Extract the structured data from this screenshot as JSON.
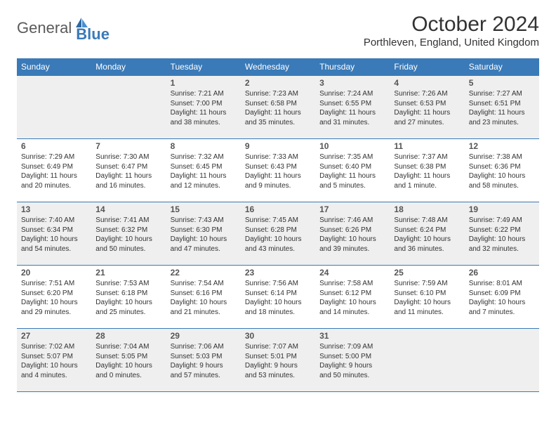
{
  "logo": {
    "text_general": "General",
    "text_blue": "Blue"
  },
  "title": "October 2024",
  "location": "Porthleven, England, United Kingdom",
  "colors": {
    "header_bg": "#3a7ab8",
    "header_text": "#ffffff",
    "border": "#3a7ab8",
    "shaded_bg": "#efefef",
    "text": "#333333"
  },
  "day_headers": [
    "Sunday",
    "Monday",
    "Tuesday",
    "Wednesday",
    "Thursday",
    "Friday",
    "Saturday"
  ],
  "weeks": [
    [
      null,
      null,
      {
        "num": "1",
        "sunrise": "Sunrise: 7:21 AM",
        "sunset": "Sunset: 7:00 PM",
        "daylight": "Daylight: 11 hours and 38 minutes."
      },
      {
        "num": "2",
        "sunrise": "Sunrise: 7:23 AM",
        "sunset": "Sunset: 6:58 PM",
        "daylight": "Daylight: 11 hours and 35 minutes."
      },
      {
        "num": "3",
        "sunrise": "Sunrise: 7:24 AM",
        "sunset": "Sunset: 6:55 PM",
        "daylight": "Daylight: 11 hours and 31 minutes."
      },
      {
        "num": "4",
        "sunrise": "Sunrise: 7:26 AM",
        "sunset": "Sunset: 6:53 PM",
        "daylight": "Daylight: 11 hours and 27 minutes."
      },
      {
        "num": "5",
        "sunrise": "Sunrise: 7:27 AM",
        "sunset": "Sunset: 6:51 PM",
        "daylight": "Daylight: 11 hours and 23 minutes."
      }
    ],
    [
      {
        "num": "6",
        "sunrise": "Sunrise: 7:29 AM",
        "sunset": "Sunset: 6:49 PM",
        "daylight": "Daylight: 11 hours and 20 minutes."
      },
      {
        "num": "7",
        "sunrise": "Sunrise: 7:30 AM",
        "sunset": "Sunset: 6:47 PM",
        "daylight": "Daylight: 11 hours and 16 minutes."
      },
      {
        "num": "8",
        "sunrise": "Sunrise: 7:32 AM",
        "sunset": "Sunset: 6:45 PM",
        "daylight": "Daylight: 11 hours and 12 minutes."
      },
      {
        "num": "9",
        "sunrise": "Sunrise: 7:33 AM",
        "sunset": "Sunset: 6:43 PM",
        "daylight": "Daylight: 11 hours and 9 minutes."
      },
      {
        "num": "10",
        "sunrise": "Sunrise: 7:35 AM",
        "sunset": "Sunset: 6:40 PM",
        "daylight": "Daylight: 11 hours and 5 minutes."
      },
      {
        "num": "11",
        "sunrise": "Sunrise: 7:37 AM",
        "sunset": "Sunset: 6:38 PM",
        "daylight": "Daylight: 11 hours and 1 minute."
      },
      {
        "num": "12",
        "sunrise": "Sunrise: 7:38 AM",
        "sunset": "Sunset: 6:36 PM",
        "daylight": "Daylight: 10 hours and 58 minutes."
      }
    ],
    [
      {
        "num": "13",
        "sunrise": "Sunrise: 7:40 AM",
        "sunset": "Sunset: 6:34 PM",
        "daylight": "Daylight: 10 hours and 54 minutes."
      },
      {
        "num": "14",
        "sunrise": "Sunrise: 7:41 AM",
        "sunset": "Sunset: 6:32 PM",
        "daylight": "Daylight: 10 hours and 50 minutes."
      },
      {
        "num": "15",
        "sunrise": "Sunrise: 7:43 AM",
        "sunset": "Sunset: 6:30 PM",
        "daylight": "Daylight: 10 hours and 47 minutes."
      },
      {
        "num": "16",
        "sunrise": "Sunrise: 7:45 AM",
        "sunset": "Sunset: 6:28 PM",
        "daylight": "Daylight: 10 hours and 43 minutes."
      },
      {
        "num": "17",
        "sunrise": "Sunrise: 7:46 AM",
        "sunset": "Sunset: 6:26 PM",
        "daylight": "Daylight: 10 hours and 39 minutes."
      },
      {
        "num": "18",
        "sunrise": "Sunrise: 7:48 AM",
        "sunset": "Sunset: 6:24 PM",
        "daylight": "Daylight: 10 hours and 36 minutes."
      },
      {
        "num": "19",
        "sunrise": "Sunrise: 7:49 AM",
        "sunset": "Sunset: 6:22 PM",
        "daylight": "Daylight: 10 hours and 32 minutes."
      }
    ],
    [
      {
        "num": "20",
        "sunrise": "Sunrise: 7:51 AM",
        "sunset": "Sunset: 6:20 PM",
        "daylight": "Daylight: 10 hours and 29 minutes."
      },
      {
        "num": "21",
        "sunrise": "Sunrise: 7:53 AM",
        "sunset": "Sunset: 6:18 PM",
        "daylight": "Daylight: 10 hours and 25 minutes."
      },
      {
        "num": "22",
        "sunrise": "Sunrise: 7:54 AM",
        "sunset": "Sunset: 6:16 PM",
        "daylight": "Daylight: 10 hours and 21 minutes."
      },
      {
        "num": "23",
        "sunrise": "Sunrise: 7:56 AM",
        "sunset": "Sunset: 6:14 PM",
        "daylight": "Daylight: 10 hours and 18 minutes."
      },
      {
        "num": "24",
        "sunrise": "Sunrise: 7:58 AM",
        "sunset": "Sunset: 6:12 PM",
        "daylight": "Daylight: 10 hours and 14 minutes."
      },
      {
        "num": "25",
        "sunrise": "Sunrise: 7:59 AM",
        "sunset": "Sunset: 6:10 PM",
        "daylight": "Daylight: 10 hours and 11 minutes."
      },
      {
        "num": "26",
        "sunrise": "Sunrise: 8:01 AM",
        "sunset": "Sunset: 6:09 PM",
        "daylight": "Daylight: 10 hours and 7 minutes."
      }
    ],
    [
      {
        "num": "27",
        "sunrise": "Sunrise: 7:02 AM",
        "sunset": "Sunset: 5:07 PM",
        "daylight": "Daylight: 10 hours and 4 minutes."
      },
      {
        "num": "28",
        "sunrise": "Sunrise: 7:04 AM",
        "sunset": "Sunset: 5:05 PM",
        "daylight": "Daylight: 10 hours and 0 minutes."
      },
      {
        "num": "29",
        "sunrise": "Sunrise: 7:06 AM",
        "sunset": "Sunset: 5:03 PM",
        "daylight": "Daylight: 9 hours and 57 minutes."
      },
      {
        "num": "30",
        "sunrise": "Sunrise: 7:07 AM",
        "sunset": "Sunset: 5:01 PM",
        "daylight": "Daylight: 9 hours and 53 minutes."
      },
      {
        "num": "31",
        "sunrise": "Sunrise: 7:09 AM",
        "sunset": "Sunset: 5:00 PM",
        "daylight": "Daylight: 9 hours and 50 minutes."
      },
      null,
      null
    ]
  ]
}
